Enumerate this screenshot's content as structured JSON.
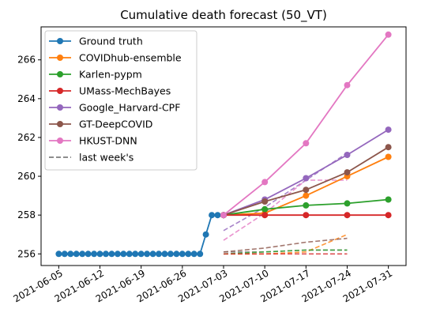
{
  "chart_data": {
    "type": "line",
    "title": "Cumulative death forecast (50_VT)",
    "xlabel": "",
    "ylabel": "",
    "x_ticks": [
      "2021-06-05",
      "2021-06-12",
      "2021-06-19",
      "2021-06-26",
      "2021-07-03",
      "2021-07-10",
      "2021-07-17",
      "2021-07-24",
      "2021-07-31"
    ],
    "xlim": [
      "2021-06-02",
      "2021-08-03"
    ],
    "ylim": [
      255.4,
      267.7
    ],
    "y_ticks": [
      256,
      258,
      260,
      262,
      264,
      266
    ],
    "grid": false,
    "legend_position": "top-left",
    "series": [
      {
        "name": "Ground truth",
        "color": "#1f77b4",
        "style": "solid-marker",
        "points": [
          [
            "2021-06-05",
            256
          ],
          [
            "2021-06-06",
            256
          ],
          [
            "2021-06-07",
            256
          ],
          [
            "2021-06-08",
            256
          ],
          [
            "2021-06-09",
            256
          ],
          [
            "2021-06-10",
            256
          ],
          [
            "2021-06-11",
            256
          ],
          [
            "2021-06-12",
            256
          ],
          [
            "2021-06-13",
            256
          ],
          [
            "2021-06-14",
            256
          ],
          [
            "2021-06-15",
            256
          ],
          [
            "2021-06-16",
            256
          ],
          [
            "2021-06-17",
            256
          ],
          [
            "2021-06-18",
            256
          ],
          [
            "2021-06-19",
            256
          ],
          [
            "2021-06-20",
            256
          ],
          [
            "2021-06-21",
            256
          ],
          [
            "2021-06-22",
            256
          ],
          [
            "2021-06-23",
            256
          ],
          [
            "2021-06-24",
            256
          ],
          [
            "2021-06-25",
            256
          ],
          [
            "2021-06-26",
            256
          ],
          [
            "2021-06-27",
            256
          ],
          [
            "2021-06-28",
            256
          ],
          [
            "2021-06-29",
            256
          ],
          [
            "2021-06-30",
            257
          ],
          [
            "2021-07-01",
            258
          ],
          [
            "2021-07-02",
            258
          ],
          [
            "2021-07-03",
            258
          ]
        ]
      },
      {
        "name": "COVIDhub-ensemble",
        "color": "#ff7f0e",
        "style": "solid-marker",
        "points": [
          [
            "2021-07-03",
            258
          ],
          [
            "2021-07-10",
            258.1
          ],
          [
            "2021-07-17",
            259
          ],
          [
            "2021-07-24",
            260
          ],
          [
            "2021-07-31",
            261
          ]
        ]
      },
      {
        "name": "Karlen-pypm",
        "color": "#2ca02c",
        "style": "solid-marker",
        "points": [
          [
            "2021-07-03",
            258
          ],
          [
            "2021-07-10",
            258.3
          ],
          [
            "2021-07-17",
            258.5
          ],
          [
            "2021-07-24",
            258.6
          ],
          [
            "2021-07-31",
            258.8
          ]
        ]
      },
      {
        "name": "UMass-MechBayes",
        "color": "#d62728",
        "style": "solid-marker",
        "points": [
          [
            "2021-07-03",
            258
          ],
          [
            "2021-07-10",
            258
          ],
          [
            "2021-07-17",
            258
          ],
          [
            "2021-07-24",
            258
          ],
          [
            "2021-07-31",
            258
          ]
        ]
      },
      {
        "name": "Google_Harvard-CPF",
        "color": "#9467bd",
        "style": "solid-marker",
        "points": [
          [
            "2021-07-03",
            258
          ],
          [
            "2021-07-10",
            258.8
          ],
          [
            "2021-07-17",
            259.9
          ],
          [
            "2021-07-24",
            261.1
          ],
          [
            "2021-07-31",
            262.4
          ]
        ]
      },
      {
        "name": "GT-DeepCOVID",
        "color": "#8c564b",
        "style": "solid-marker",
        "points": [
          [
            "2021-07-03",
            258
          ],
          [
            "2021-07-10",
            258.7
          ],
          [
            "2021-07-17",
            259.3
          ],
          [
            "2021-07-24",
            260.2
          ],
          [
            "2021-07-31",
            261.5
          ]
        ]
      },
      {
        "name": "HKUST-DNN",
        "color": "#e377c2",
        "style": "solid-marker",
        "points": [
          [
            "2021-07-03",
            258
          ],
          [
            "2021-07-10",
            259.7
          ],
          [
            "2021-07-17",
            261.7
          ],
          [
            "2021-07-24",
            264.7
          ],
          [
            "2021-07-31",
            267.3
          ]
        ]
      },
      {
        "name": "last week's",
        "color": "#7f7f7f",
        "style": "dashed",
        "points": [
          [
            "2021-07-03",
            256.1
          ],
          [
            "2021-07-10",
            256.1
          ],
          [
            "2021-07-17",
            256.2
          ],
          [
            "2021-07-24",
            256.2
          ]
        ]
      },
      {
        "name": "",
        "color": "#ff7f0e",
        "style": "dashed",
        "points": [
          [
            "2021-07-03",
            256
          ],
          [
            "2021-07-10",
            256
          ],
          [
            "2021-07-17",
            256.1
          ],
          [
            "2021-07-24",
            257
          ]
        ]
      },
      {
        "name": "",
        "color": "#2ca02c",
        "style": "dashed",
        "points": [
          [
            "2021-07-03",
            256
          ],
          [
            "2021-07-10",
            256.1
          ],
          [
            "2021-07-17",
            256.2
          ],
          [
            "2021-07-24",
            256.2
          ]
        ]
      },
      {
        "name": "",
        "color": "#d62728",
        "style": "dashed",
        "points": [
          [
            "2021-07-03",
            256
          ],
          [
            "2021-07-10",
            256
          ],
          [
            "2021-07-17",
            256
          ],
          [
            "2021-07-24",
            256
          ]
        ]
      },
      {
        "name": "",
        "color": "#9467bd",
        "style": "dashed",
        "points": [
          [
            "2021-07-03",
            257.2
          ],
          [
            "2021-07-10",
            258.4
          ],
          [
            "2021-07-17",
            259.8
          ],
          [
            "2021-07-24",
            261.2
          ]
        ]
      },
      {
        "name": "",
        "color": "#8c564b",
        "style": "dashed",
        "points": [
          [
            "2021-07-03",
            256.1
          ],
          [
            "2021-07-10",
            256.3
          ],
          [
            "2021-07-17",
            256.6
          ],
          [
            "2021-07-24",
            256.8
          ]
        ]
      },
      {
        "name": "",
        "color": "#e377c2",
        "style": "dashed",
        "points": [
          [
            "2021-07-03",
            256.7
          ],
          [
            "2021-07-10",
            258.1
          ],
          [
            "2021-07-17",
            259.8
          ],
          [
            "2021-07-24",
            259.8
          ]
        ]
      }
    ]
  }
}
